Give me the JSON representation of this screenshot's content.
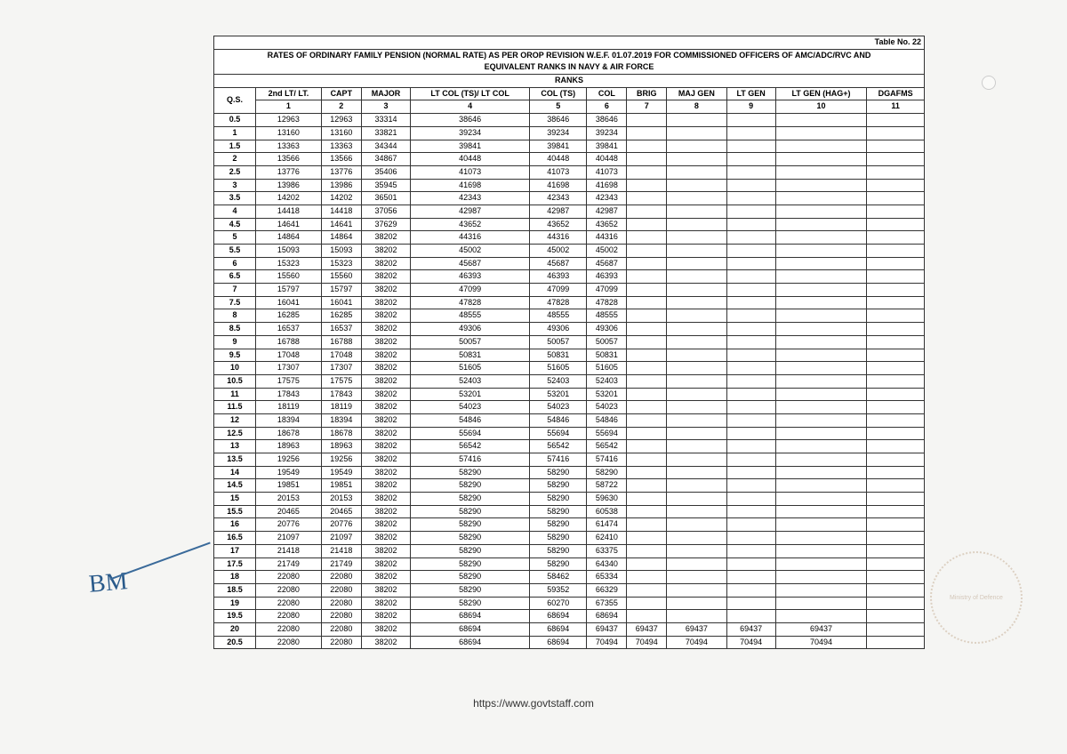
{
  "table_number": "Table No. 22",
  "title_line1": "RATES OF ORDINARY FAMILY PENSION (NORMAL RATE) AS PER OROP REVISION W.E.F. 01.07.2019 FOR COMMISSIONED OFFICERS OF AMC/ADC/RVC AND",
  "title_line2": "EQUIVALENT RANKS IN NAVY & AIR FORCE",
  "title_line3": "RANKS",
  "headers": [
    "Q.S.",
    "2nd LT/ LT.",
    "CAPT",
    "MAJOR",
    "LT COL (TS)/ LT COL",
    "COL (TS)",
    "COL",
    "BRIG",
    "MAJ GEN",
    "LT GEN",
    "LT GEN (HAG+)",
    "DGAFMS"
  ],
  "col_nums": [
    "",
    "1",
    "2",
    "3",
    "4",
    "5",
    "6",
    "7",
    "8",
    "9",
    "10",
    "11"
  ],
  "rows": [
    [
      "0.5",
      "12963",
      "12963",
      "33314",
      "38646",
      "38646",
      "38646",
      "",
      "",
      "",
      "",
      ""
    ],
    [
      "1",
      "13160",
      "13160",
      "33821",
      "39234",
      "39234",
      "39234",
      "",
      "",
      "",
      "",
      ""
    ],
    [
      "1.5",
      "13363",
      "13363",
      "34344",
      "39841",
      "39841",
      "39841",
      "",
      "",
      "",
      "",
      ""
    ],
    [
      "2",
      "13566",
      "13566",
      "34867",
      "40448",
      "40448",
      "40448",
      "",
      "",
      "",
      "",
      ""
    ],
    [
      "2.5",
      "13776",
      "13776",
      "35406",
      "41073",
      "41073",
      "41073",
      "",
      "",
      "",
      "",
      ""
    ],
    [
      "3",
      "13986",
      "13986",
      "35945",
      "41698",
      "41698",
      "41698",
      "",
      "",
      "",
      "",
      ""
    ],
    [
      "3.5",
      "14202",
      "14202",
      "36501",
      "42343",
      "42343",
      "42343",
      "",
      "",
      "",
      "",
      ""
    ],
    [
      "4",
      "14418",
      "14418",
      "37056",
      "42987",
      "42987",
      "42987",
      "",
      "",
      "",
      "",
      ""
    ],
    [
      "4.5",
      "14641",
      "14641",
      "37629",
      "43652",
      "43652",
      "43652",
      "",
      "",
      "",
      "",
      ""
    ],
    [
      "5",
      "14864",
      "14864",
      "38202",
      "44316",
      "44316",
      "44316",
      "",
      "",
      "",
      "",
      ""
    ],
    [
      "5.5",
      "15093",
      "15093",
      "38202",
      "45002",
      "45002",
      "45002",
      "",
      "",
      "",
      "",
      ""
    ],
    [
      "6",
      "15323",
      "15323",
      "38202",
      "45687",
      "45687",
      "45687",
      "",
      "",
      "",
      "",
      ""
    ],
    [
      "6.5",
      "15560",
      "15560",
      "38202",
      "46393",
      "46393",
      "46393",
      "",
      "",
      "",
      "",
      ""
    ],
    [
      "7",
      "15797",
      "15797",
      "38202",
      "47099",
      "47099",
      "47099",
      "",
      "",
      "",
      "",
      ""
    ],
    [
      "7.5",
      "16041",
      "16041",
      "38202",
      "47828",
      "47828",
      "47828",
      "",
      "",
      "",
      "",
      ""
    ],
    [
      "8",
      "16285",
      "16285",
      "38202",
      "48555",
      "48555",
      "48555",
      "",
      "",
      "",
      "",
      ""
    ],
    [
      "8.5",
      "16537",
      "16537",
      "38202",
      "49306",
      "49306",
      "49306",
      "",
      "",
      "",
      "",
      ""
    ],
    [
      "9",
      "16788",
      "16788",
      "38202",
      "50057",
      "50057",
      "50057",
      "",
      "",
      "",
      "",
      ""
    ],
    [
      "9.5",
      "17048",
      "17048",
      "38202",
      "50831",
      "50831",
      "50831",
      "",
      "",
      "",
      "",
      ""
    ],
    [
      "10",
      "17307",
      "17307",
      "38202",
      "51605",
      "51605",
      "51605",
      "",
      "",
      "",
      "",
      ""
    ],
    [
      "10.5",
      "17575",
      "17575",
      "38202",
      "52403",
      "52403",
      "52403",
      "",
      "",
      "",
      "",
      ""
    ],
    [
      "11",
      "17843",
      "17843",
      "38202",
      "53201",
      "53201",
      "53201",
      "",
      "",
      "",
      "",
      ""
    ],
    [
      "11.5",
      "18119",
      "18119",
      "38202",
      "54023",
      "54023",
      "54023",
      "",
      "",
      "",
      "",
      ""
    ],
    [
      "12",
      "18394",
      "18394",
      "38202",
      "54846",
      "54846",
      "54846",
      "",
      "",
      "",
      "",
      ""
    ],
    [
      "12.5",
      "18678",
      "18678",
      "38202",
      "55694",
      "55694",
      "55694",
      "",
      "",
      "",
      "",
      ""
    ],
    [
      "13",
      "18963",
      "18963",
      "38202",
      "56542",
      "56542",
      "56542",
      "",
      "",
      "",
      "",
      ""
    ],
    [
      "13.5",
      "19256",
      "19256",
      "38202",
      "57416",
      "57416",
      "57416",
      "",
      "",
      "",
      "",
      ""
    ],
    [
      "14",
      "19549",
      "19549",
      "38202",
      "58290",
      "58290",
      "58290",
      "",
      "",
      "",
      "",
      ""
    ],
    [
      "14.5",
      "19851",
      "19851",
      "38202",
      "58290",
      "58290",
      "58722",
      "",
      "",
      "",
      "",
      ""
    ],
    [
      "15",
      "20153",
      "20153",
      "38202",
      "58290",
      "58290",
      "59630",
      "",
      "",
      "",
      "",
      ""
    ],
    [
      "15.5",
      "20465",
      "20465",
      "38202",
      "58290",
      "58290",
      "60538",
      "",
      "",
      "",
      "",
      ""
    ],
    [
      "16",
      "20776",
      "20776",
      "38202",
      "58290",
      "58290",
      "61474",
      "",
      "",
      "",
      "",
      ""
    ],
    [
      "16.5",
      "21097",
      "21097",
      "38202",
      "58290",
      "58290",
      "62410",
      "",
      "",
      "",
      "",
      ""
    ],
    [
      "17",
      "21418",
      "21418",
      "38202",
      "58290",
      "58290",
      "63375",
      "",
      "",
      "",
      "",
      ""
    ],
    [
      "17.5",
      "21749",
      "21749",
      "38202",
      "58290",
      "58290",
      "64340",
      "",
      "",
      "",
      "",
      ""
    ],
    [
      "18",
      "22080",
      "22080",
      "38202",
      "58290",
      "58462",
      "65334",
      "",
      "",
      "",
      "",
      ""
    ],
    [
      "18.5",
      "22080",
      "22080",
      "38202",
      "58290",
      "59352",
      "66329",
      "",
      "",
      "",
      "",
      ""
    ],
    [
      "19",
      "22080",
      "22080",
      "38202",
      "58290",
      "60270",
      "67355",
      "",
      "",
      "",
      "",
      ""
    ],
    [
      "19.5",
      "22080",
      "22080",
      "38202",
      "68694",
      "68694",
      "68694",
      "",
      "",
      "",
      "",
      ""
    ],
    [
      "20",
      "22080",
      "22080",
      "38202",
      "68694",
      "68694",
      "69437",
      "69437",
      "69437",
      "69437",
      "69437",
      ""
    ],
    [
      "20.5",
      "22080",
      "22080",
      "38202",
      "68694",
      "68694",
      "70494",
      "70494",
      "70494",
      "70494",
      "70494",
      ""
    ]
  ],
  "footer_url": "https://www.govtstaff.com",
  "signature": "BM",
  "stamp_text": "Ministry of Defence"
}
